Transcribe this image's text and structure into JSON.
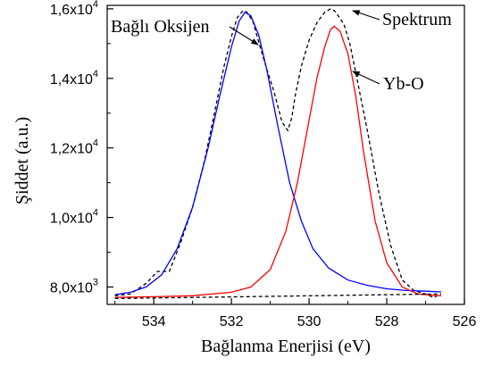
{
  "chart_data": {
    "type": "line",
    "xlabel": "Bağlanma Enerjisi (eV)",
    "ylabel": "Şiddet (a.u.)",
    "xlim": [
      535.2,
      526.0
    ],
    "ylim": [
      7500,
      16100
    ],
    "x_reversed": true,
    "grid": false,
    "x_ticks": [
      534,
      532,
      530,
      528,
      526
    ],
    "y_ticks": [
      {
        "value": 8000,
        "mantissa": "8,0x10",
        "exp": "3"
      },
      {
        "value": 10000,
        "mantissa": "1,0x10",
        "exp": "4"
      },
      {
        "value": 12000,
        "mantissa": "1,2x10",
        "exp": "4"
      },
      {
        "value": 14000,
        "mantissa": "1,4x10",
        "exp": "4"
      },
      {
        "value": 16000,
        "mantissa": "1,6x10",
        "exp": "4"
      }
    ],
    "series": [
      {
        "name": "Spektrum",
        "style": "dashed",
        "color": "#000000",
        "x": [
          535.0,
          534.6,
          534.2,
          533.9,
          533.6,
          533.3,
          533.0,
          532.7,
          532.4,
          532.2,
          532.0,
          531.85,
          531.7,
          531.6,
          531.45,
          531.3,
          531.1,
          530.9,
          530.7,
          530.55,
          530.45,
          530.35,
          530.2,
          530.0,
          529.8,
          529.6,
          529.45,
          529.35,
          529.25,
          529.1,
          528.95,
          528.75,
          528.5,
          528.2,
          527.9,
          527.6,
          527.3,
          527.0,
          526.8,
          526.6
        ],
        "y": [
          7750,
          7800,
          8100,
          8450,
          8450,
          9300,
          10300,
          11600,
          13200,
          14300,
          15200,
          15750,
          15950,
          15900,
          15650,
          15050,
          14300,
          13600,
          12750,
          12500,
          12850,
          13550,
          14350,
          15100,
          15600,
          15900,
          16000,
          15950,
          15800,
          15550,
          15000,
          13900,
          12500,
          10700,
          9200,
          8200,
          7900,
          7800,
          7700,
          7800
        ]
      },
      {
        "name": "Bağlı Oksijen",
        "style": "solid",
        "color": "#0000ff",
        "x": [
          535.0,
          534.6,
          534.2,
          533.8,
          533.4,
          533.0,
          532.6,
          532.3,
          532.0,
          531.8,
          531.65,
          531.5,
          531.3,
          531.1,
          530.8,
          530.5,
          530.2,
          529.9,
          529.5,
          529.0,
          528.5,
          528.0,
          527.5,
          527.0,
          526.6
        ],
        "y": [
          7780,
          7850,
          8000,
          8350,
          9100,
          10300,
          12000,
          13500,
          14900,
          15650,
          15900,
          15800,
          15250,
          14300,
          12600,
          11000,
          9900,
          9100,
          8550,
          8200,
          8050,
          7950,
          7900,
          7880,
          7860
        ]
      },
      {
        "name": "Yb-O",
        "style": "solid",
        "color": "#ff0000",
        "x": [
          535.0,
          534.0,
          533.0,
          532.0,
          531.5,
          531.0,
          530.6,
          530.3,
          530.0,
          529.8,
          529.6,
          529.45,
          529.35,
          529.2,
          529.0,
          528.8,
          528.6,
          528.3,
          528.0,
          527.6,
          527.2,
          526.8,
          526.6
        ],
        "y": [
          7700,
          7720,
          7750,
          7850,
          8000,
          8500,
          9600,
          11000,
          12800,
          14000,
          14900,
          15400,
          15500,
          15350,
          14700,
          13500,
          11900,
          9900,
          8700,
          8000,
          7800,
          7760,
          7750
        ]
      },
      {
        "name": "Baseline",
        "style": "dashed",
        "color": "#000000",
        "x": [
          535.0,
          526.6
        ],
        "y": [
          7670,
          7800
        ]
      }
    ],
    "annotations": [
      {
        "text": "Bağlı Oksijen",
        "target": "Bağlı Oksijen"
      },
      {
        "text": "Spektrum",
        "target": "Spektrum"
      },
      {
        "text": "Yb-O",
        "target": "Yb-O"
      }
    ]
  }
}
